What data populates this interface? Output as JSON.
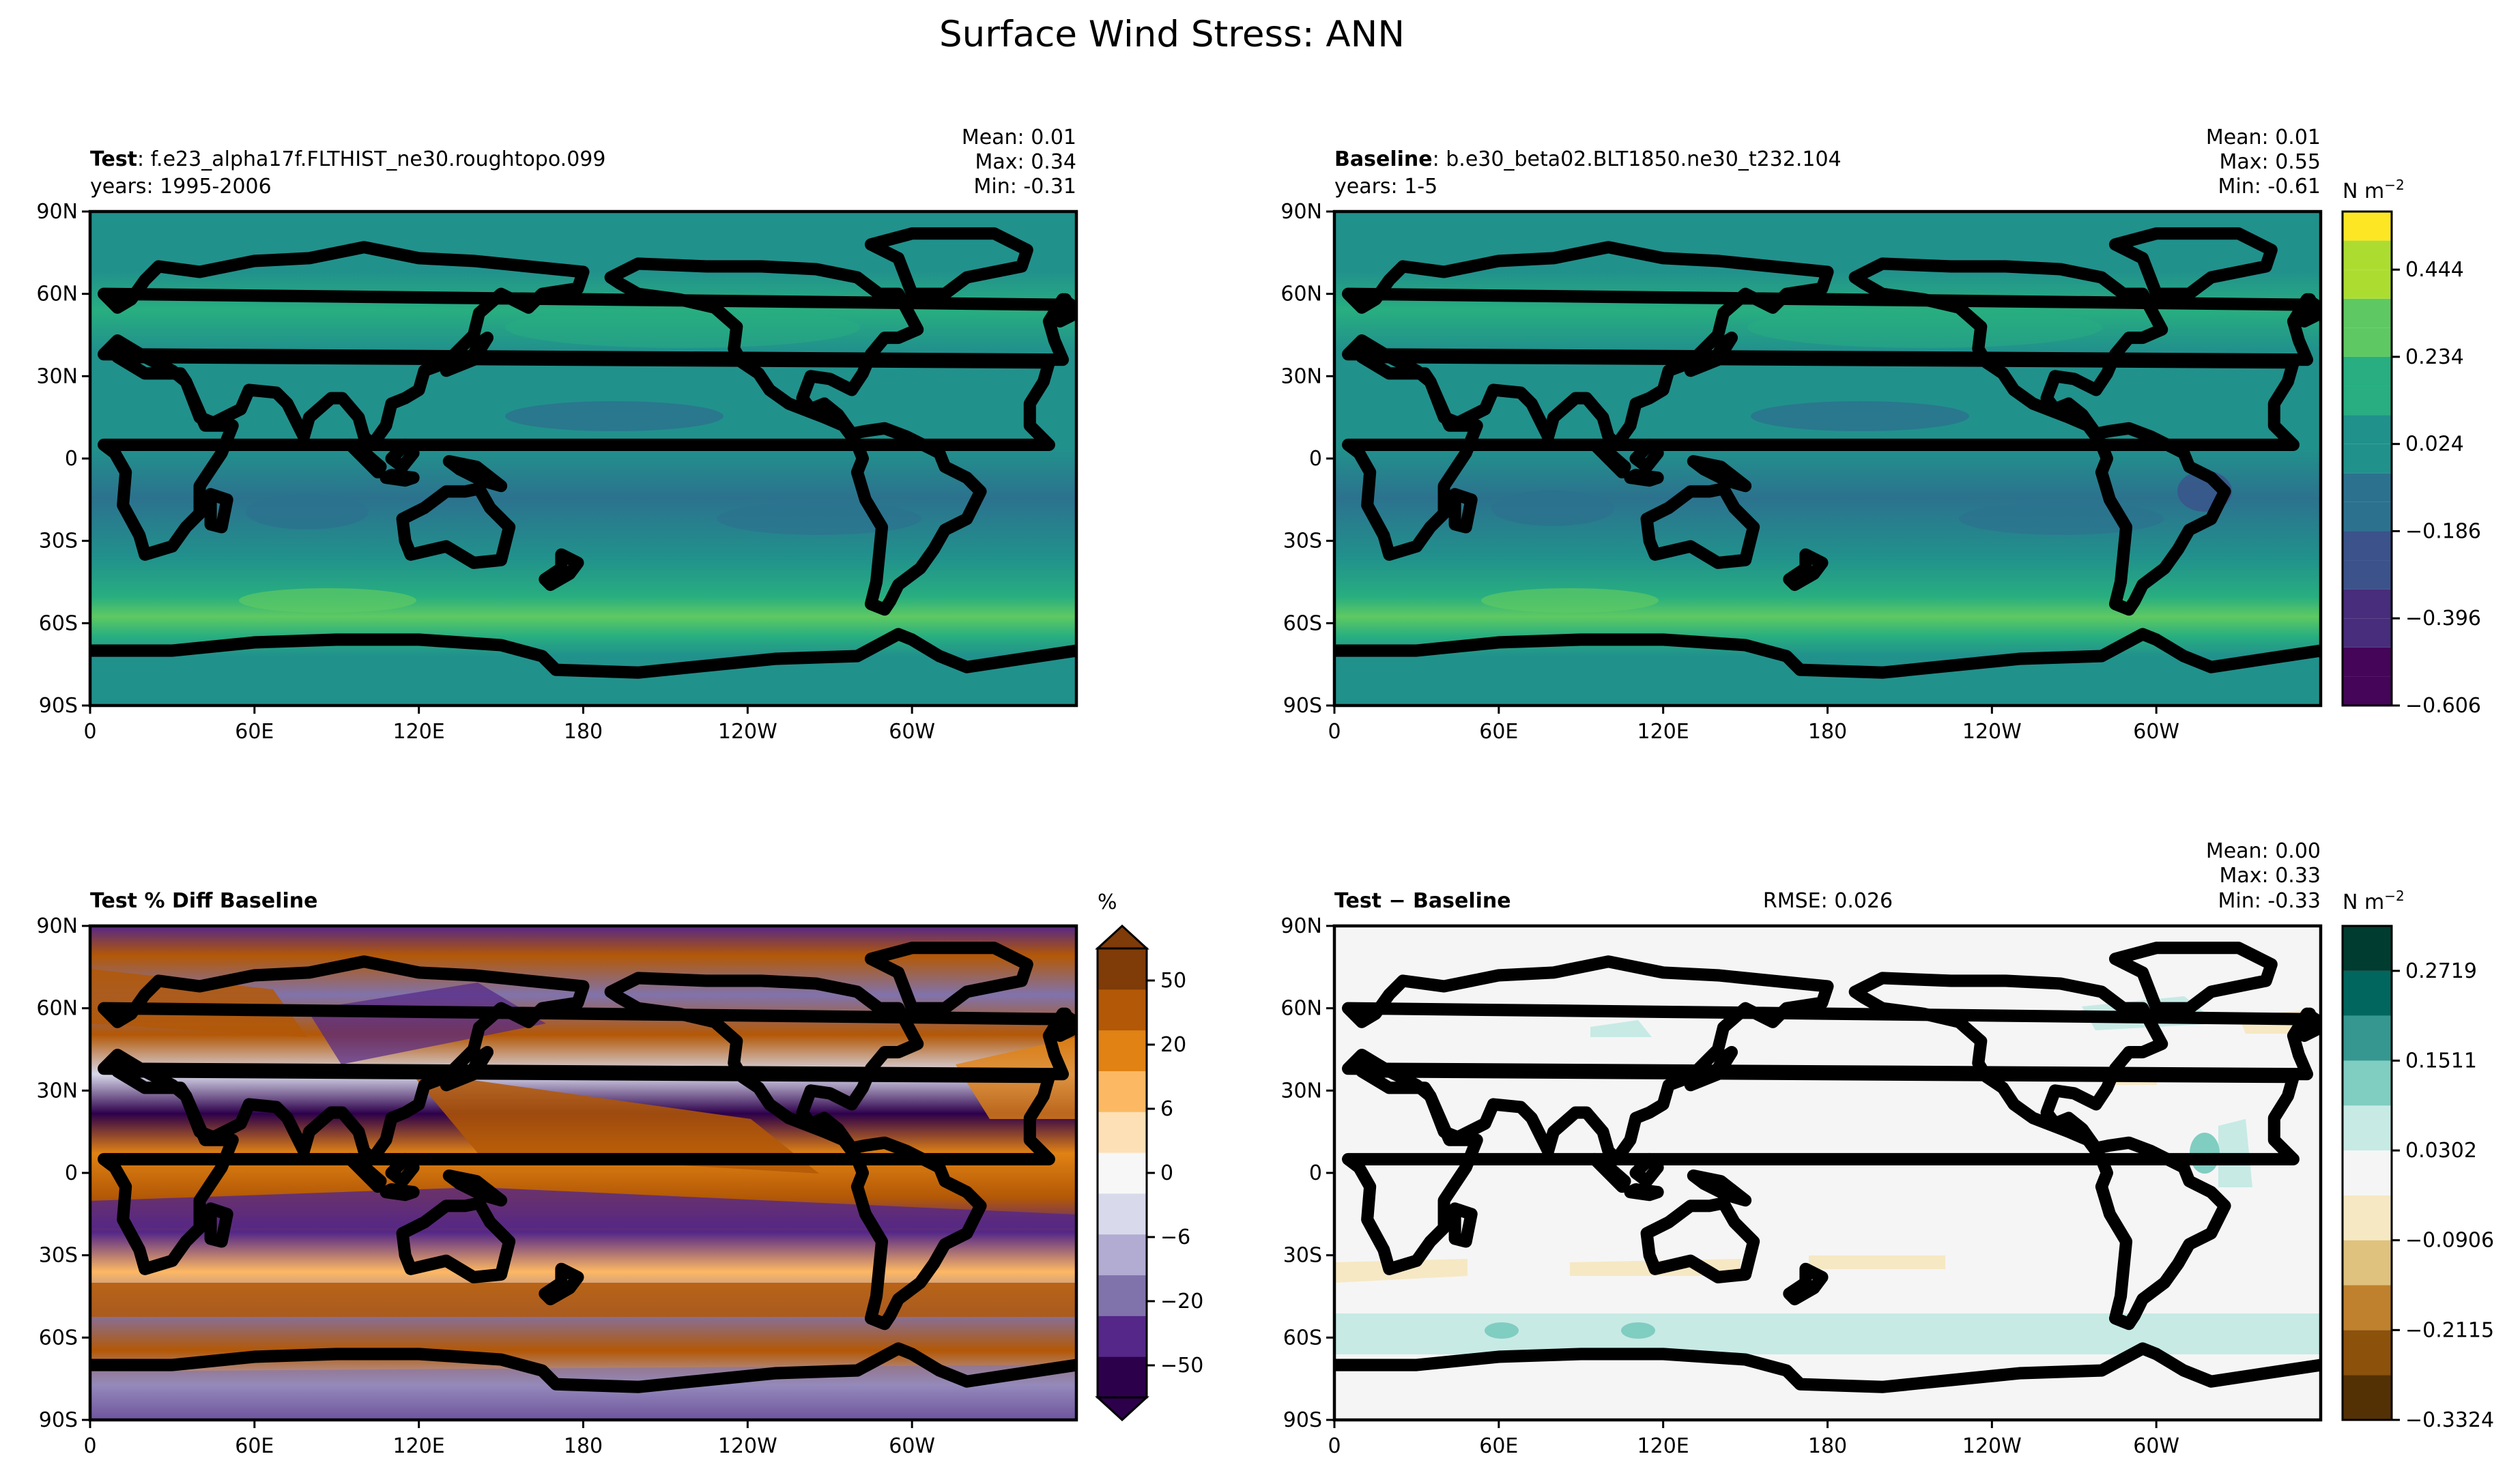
{
  "figure": {
    "title": "Surface Wind Stress: ANN"
  },
  "lon_ticks": [
    "0",
    "60E",
    "120E",
    "180",
    "120W",
    "60W"
  ],
  "lat_ticks": [
    "90N",
    "60N",
    "30N",
    "0",
    "30S",
    "60S",
    "90S"
  ],
  "chart_data": [
    {
      "type": "heatmap",
      "panel": "test",
      "title_bold": "Test",
      "title_rest": ": f.e23_alpha17f.FLTHIST_ne30.roughtopo.099",
      "subtitle": "years: 1995-2006",
      "stats": [
        "Mean:  0.01",
        "Max:  0.34",
        "Min: -0.31"
      ],
      "stats_values": {
        "mean": 0.01,
        "max": 0.34,
        "min": -0.31
      },
      "xlim": [
        0,
        360
      ],
      "ylim": [
        -90,
        90
      ],
      "grid": false
    },
    {
      "type": "heatmap",
      "panel": "baseline",
      "title_bold": "Baseline",
      "title_rest": ": b.e30_beta02.BLT1850.ne30_t232.104",
      "subtitle": "years: 1-5",
      "stats": [
        "Mean:  0.01",
        "Max:  0.55",
        "Min: -0.61"
      ],
      "stats_values": {
        "mean": 0.01,
        "max": 0.55,
        "min": -0.61
      },
      "colorbar": {
        "unit": "N m",
        "unit_exp": "−2",
        "ticks": [
          "0.444",
          "0.234",
          "0.024",
          "−0.186",
          "−0.396",
          "−0.606"
        ],
        "tick_values": [
          0.444,
          0.234,
          0.024,
          -0.186,
          -0.396,
          -0.606
        ],
        "colors": [
          "#450559",
          "#472d7b",
          "#3b528b",
          "#2c728e",
          "#21918c",
          "#28ae80",
          "#5ec962",
          "#addc30",
          "#fde725"
        ],
        "levels": [
          -0.606,
          -0.536,
          -0.466,
          -0.396,
          -0.326,
          -0.256,
          -0.186,
          -0.116,
          -0.046,
          0.024,
          0.094,
          0.164,
          0.234,
          0.304,
          0.374,
          0.444,
          0.514,
          0.584
        ]
      },
      "xlim": [
        0,
        360
      ],
      "ylim": [
        -90,
        90
      ],
      "grid": false
    },
    {
      "type": "heatmap",
      "panel": "pct_diff",
      "title_bold": "Test % Diff Baseline",
      "colorbar": {
        "unit": "%",
        "ticks": [
          "50",
          "20",
          "6",
          "0",
          "−6",
          "−20",
          "−50"
        ],
        "tick_values": [
          50,
          20,
          6,
          0,
          -6,
          -20,
          -50
        ],
        "colors": [
          "#2d004b",
          "#542788",
          "#8073ac",
          "#b2abd2",
          "#d8daeb",
          "#f7f7f7",
          "#fee0b6",
          "#fdb863",
          "#e08214",
          "#b35806",
          "#7f3b08"
        ]
      },
      "xlim": [
        0,
        360
      ],
      "ylim": [
        -90,
        90
      ],
      "grid": false
    },
    {
      "type": "heatmap",
      "panel": "difference",
      "title_bold": "Test",
      "title_rest": " − Baseline",
      "rmse": "RMSE: 0.026",
      "stats": [
        "Mean:  0.00",
        "Max:  0.33",
        "Min: -0.33"
      ],
      "stats_values": {
        "mean": 0.0,
        "max": 0.33,
        "min": -0.33
      },
      "colorbar": {
        "unit": "N m",
        "unit_exp": "−2",
        "ticks": [
          "0.2719",
          "0.1511",
          "0.0302",
          "−0.0906",
          "−0.2115",
          "−0.3324"
        ],
        "tick_values": [
          0.2719,
          0.1511,
          0.0302,
          -0.0906,
          -0.2115,
          -0.3324
        ],
        "colors": [
          "#543005",
          "#8c510a",
          "#bf812d",
          "#dfc27d",
          "#f6e8c3",
          "#f5f5f5",
          "#c7eae5",
          "#80cdc1",
          "#35978f",
          "#01665e",
          "#003c30"
        ],
        "levels": [
          -0.3324,
          -0.2719,
          -0.2115,
          -0.1511,
          -0.0906,
          -0.0302,
          0.0302,
          0.0906,
          0.1511,
          0.2115,
          0.2719,
          0.3324
        ]
      },
      "xlim": [
        0,
        360
      ],
      "ylim": [
        -90,
        90
      ],
      "grid": false
    }
  ]
}
